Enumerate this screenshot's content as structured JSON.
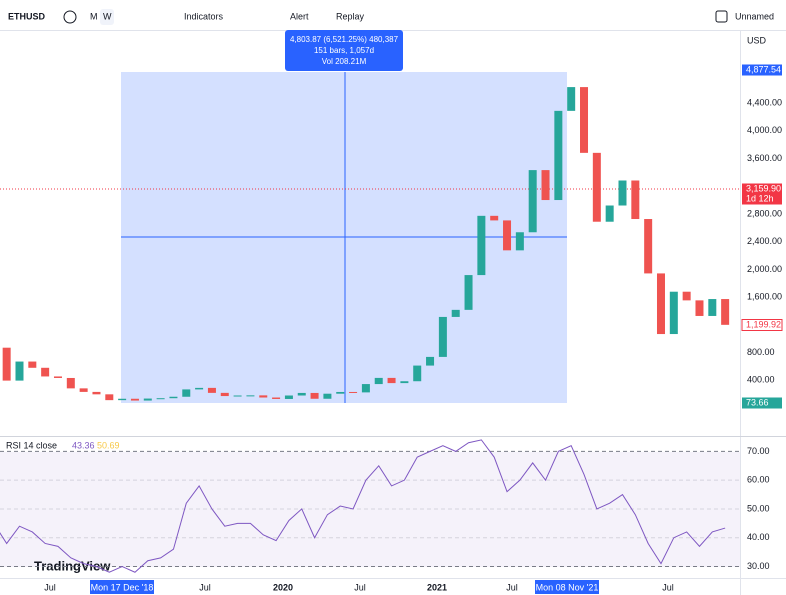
{
  "toolbar": {
    "symbol": "ETHUSD",
    "intervals": [
      "M",
      "W"
    ],
    "indicators": "Indicators",
    "alert": "Alert",
    "replay": "Replay",
    "layout_name": "Unnamed"
  },
  "chart_data": {
    "type": "candlestick",
    "currency": "USD",
    "up_color": "#26a69a",
    "down_color": "#ef5350",
    "grid": false,
    "values": [
      870,
      395,
      670,
      580,
      455,
      433,
      283,
      232,
      197,
      113,
      133,
      107,
      136,
      141,
      162,
      268,
      290,
      218,
      172,
      180,
      182,
      151,
      130,
      180,
      217,
      133,
      206,
      231,
      225,
      345,
      434,
      359,
      386,
      612,
      737,
      1314,
      1416,
      1918,
      2773,
      2707,
      2275,
      2536,
      3433,
      3001,
      4288,
      4631,
      3682,
      2688,
      2922,
      3283,
      2727,
      1942,
      1067,
      1678,
      1553,
      1328,
      1572,
      1199.92
    ],
    "ylim": [
      -390,
      5455
    ],
    "yticks": [
      {
        "value": 400,
        "label": "400.00"
      },
      {
        "value": 800,
        "label": "800.00"
      },
      {
        "value": 1600,
        "label": "1,600.00"
      },
      {
        "value": 2000,
        "label": "2,000.00"
      },
      {
        "value": 2400,
        "label": "2,400.00"
      },
      {
        "value": 2800,
        "label": "2,800.00"
      },
      {
        "value": 3600,
        "label": "3,600.00"
      },
      {
        "value": 4000,
        "label": "4,000.00"
      },
      {
        "value": 4400,
        "label": "4,400.00"
      }
    ],
    "price_labels": {
      "high": "4,877.54",
      "crosshair": "3,159.90",
      "countdown": "1d 12h",
      "last": "1,199.92",
      "volume": "73.66"
    },
    "measure": [
      "4,803.87 (6,521.25%) 480,387",
      "151 bars, 1,057d",
      "Vol 208.21M"
    ],
    "rsi": {
      "title": "RSI 14 close",
      "value": 43.36,
      "ma_value": 50.69,
      "color": "#7e57c2",
      "values": [
        45,
        38,
        44,
        42,
        38,
        37,
        33,
        31,
        30,
        28,
        30,
        28,
        32,
        33,
        36,
        52,
        58,
        50,
        44,
        45,
        45,
        41,
        39,
        46,
        50,
        40,
        48,
        51,
        50,
        60,
        65,
        58,
        60,
        68,
        70,
        72,
        70,
        73,
        74,
        68,
        56,
        60,
        66,
        60,
        70,
        72,
        62,
        50,
        52,
        55,
        48,
        38,
        31,
        40,
        42,
        37,
        42,
        43.36
      ],
      "ylim": [
        26,
        75
      ],
      "yticks": [
        {
          "value": 30,
          "label": "30.00"
        },
        {
          "value": 40,
          "label": "40.00"
        },
        {
          "value": 50,
          "label": "50.00"
        },
        {
          "value": 60,
          "label": "60.00"
        },
        {
          "value": 70,
          "label": "70.00"
        }
      ]
    },
    "time_labels": [
      "Jul",
      "Mon 17 Dec '18",
      "Jul",
      "2020",
      "Jul",
      "2021",
      "Jul",
      "Mon 08 Nov '21",
      "Jul"
    ],
    "watermark": "TradingView"
  }
}
